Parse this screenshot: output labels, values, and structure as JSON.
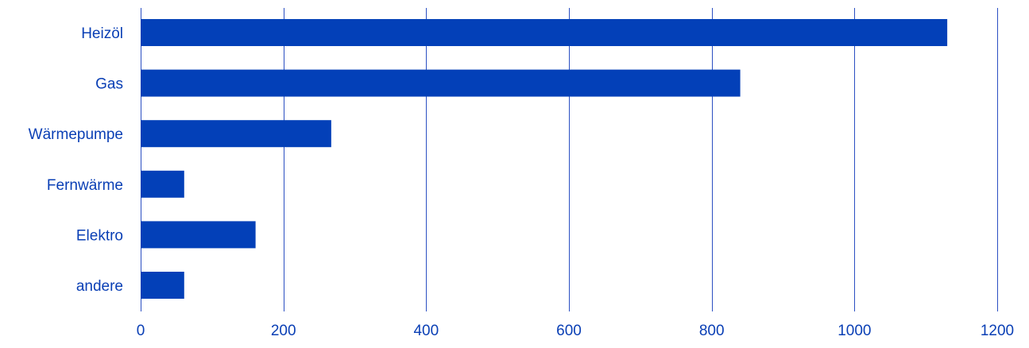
{
  "chart_data": {
    "type": "bar",
    "orientation": "horizontal",
    "title": "",
    "xlabel": "",
    "ylabel": "",
    "categories": [
      "Heizöl",
      "Gas",
      "Wärmepumpe",
      "Fernwärme",
      "Elektro",
      "andere"
    ],
    "values": [
      1130,
      840,
      267,
      61,
      161,
      61
    ],
    "xlim": [
      0,
      1200
    ],
    "x_ticks": [
      "0",
      "200",
      "400",
      "600",
      "800",
      "1000",
      "1200"
    ],
    "x_tick_values": [
      0,
      200,
      400,
      600,
      800,
      1000,
      1200
    ],
    "grid": "vertical",
    "legend": "none",
    "colors": {
      "bar": "#0340b8",
      "grid": "#2b4fc2",
      "text": "#0a3fb5"
    }
  }
}
